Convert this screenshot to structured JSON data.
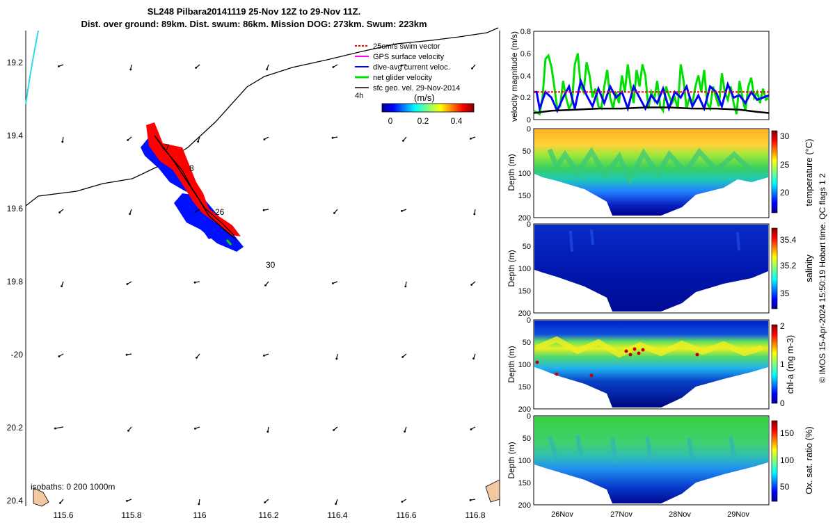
{
  "title": {
    "line1": "SL248 Pilbara20141119 25-Nov 12Z to 29-Nov 11Z.",
    "line2": "Dist. over ground: 89km. Dist. swum: 86km. Mission DOG: 273km. Swum: 223km"
  },
  "map": {
    "lon_ticks": [
      "115.6",
      "115.8",
      "116",
      "116.2",
      "116.4",
      "116.6",
      "116.8"
    ],
    "lat_ticks": [
      "19.2",
      "19.4",
      "19.6",
      "19.8",
      "-20",
      "20.2",
      "20.4"
    ],
    "legend": [
      {
        "label": "25cm/s swim vector",
        "color": "#ff0000"
      },
      {
        "label": "GPS surface velocity",
        "color": "#ff00ff"
      },
      {
        "label": "dive-avg current veloc.",
        "color": "#0000ff"
      },
      {
        "label": "net glider velocity",
        "color": "#00e000"
      },
      {
        "label": "sfc geo. vel. 29-Nov-2014",
        "color": "#000000"
      }
    ],
    "legend_extra": "4h",
    "speed_colorbar": {
      "label": "(m/s)",
      "ticks": [
        "0",
        "0.2",
        "0.4"
      ]
    },
    "day_labels": [
      "7",
      "8",
      "26",
      "30"
    ],
    "isobaths_text": "isobaths: 0   200  1000m"
  },
  "chart_data": [
    {
      "type": "line",
      "ylabel": "velocity magnitude (m/s)",
      "ylim": [
        0,
        0.8
      ],
      "yticks": [
        "0",
        "0.2",
        "0.4",
        "0.6",
        "0.8"
      ],
      "x_days": [
        25.5,
        29.5
      ],
      "series": [
        {
          "name": "net glider velocity",
          "color": "#00e000",
          "x": [
            25.5,
            25.6,
            25.65,
            25.7,
            25.75,
            25.8,
            25.85,
            25.9,
            25.95,
            26.0,
            26.05,
            26.1,
            26.15,
            26.2,
            26.25,
            26.3,
            26.35,
            26.4,
            26.45,
            26.5,
            26.55,
            26.6,
            26.65,
            26.7,
            26.75,
            26.8,
            26.85,
            26.9,
            26.95,
            27.0,
            27.05,
            27.1,
            27.15,
            27.2,
            27.25,
            27.3,
            27.35,
            27.4,
            27.45,
            27.5,
            27.55,
            27.6,
            27.65,
            27.7,
            27.75,
            27.8,
            27.85,
            27.9,
            27.95,
            28.0,
            28.05,
            28.1,
            28.15,
            28.2,
            28.25,
            28.3,
            28.35,
            28.4,
            28.45,
            28.5,
            28.55,
            28.6,
            28.65,
            28.7,
            28.75,
            28.8,
            28.85,
            28.9,
            28.95,
            29.0,
            29.05,
            29.1,
            29.15,
            29.2,
            29.25,
            29.3,
            29.35,
            29.4,
            29.45,
            29.5
          ],
          "y": [
            0.08,
            0.05,
            0.2,
            0.55,
            0.58,
            0.48,
            0.3,
            0.1,
            0.12,
            0.35,
            0.2,
            0.1,
            0.15,
            0.5,
            0.6,
            0.3,
            0.25,
            0.52,
            0.4,
            0.2,
            0.28,
            0.12,
            0.1,
            0.3,
            0.45,
            0.2,
            0.1,
            0.25,
            0.15,
            0.4,
            0.25,
            0.5,
            0.3,
            0.15,
            0.45,
            0.3,
            0.5,
            0.4,
            0.1,
            0.25,
            0.18,
            0.35,
            0.12,
            0.08,
            0.3,
            0.22,
            0.15,
            0.2,
            0.1,
            0.5,
            0.35,
            0.1,
            0.2,
            0.15,
            0.3,
            0.4,
            0.25,
            0.45,
            0.15,
            0.1,
            0.3,
            0.2,
            0.12,
            0.42,
            0.25,
            0.18,
            0.3,
            0.15,
            0.05,
            0.35,
            0.2,
            0.08,
            0.3,
            0.38,
            0.2,
            0.25,
            0.15,
            0.28,
            0.18,
            0.2
          ]
        },
        {
          "name": "dive-avg current veloc.",
          "color": "#0000ff",
          "x": [
            25.5,
            25.55,
            25.6,
            25.7,
            25.8,
            25.9,
            26.0,
            26.1,
            26.2,
            26.3,
            26.4,
            26.5,
            26.6,
            26.7,
            26.8,
            26.9,
            27.0,
            27.1,
            27.2,
            27.3,
            27.4,
            27.5,
            27.6,
            27.7,
            27.8,
            27.9,
            28.0,
            28.1,
            28.2,
            28.3,
            28.4,
            28.5,
            28.6,
            28.7,
            28.8,
            28.9,
            29.0,
            29.1,
            29.2,
            29.3,
            29.4,
            29.5
          ],
          "y": [
            0.25,
            0.25,
            0.1,
            0.25,
            0.2,
            0.08,
            0.2,
            0.3,
            0.1,
            0.35,
            0.22,
            0.12,
            0.28,
            0.15,
            0.3,
            0.2,
            0.25,
            0.1,
            0.3,
            0.2,
            0.1,
            0.22,
            0.15,
            0.28,
            0.1,
            0.25,
            0.2,
            0.3,
            0.12,
            0.22,
            0.1,
            0.3,
            0.25,
            0.12,
            0.32,
            0.2,
            0.22,
            0.15,
            0.25,
            0.18,
            0.2,
            0.22
          ]
        },
        {
          "name": "25cm/s swim vector",
          "color": "#ff0000",
          "x": [
            25.5,
            29.5
          ],
          "y": [
            0.25,
            0.25
          ]
        },
        {
          "name": "sfc geo. vel. 29-Nov-2014",
          "color": "#000000",
          "x": [
            25.5,
            25.8,
            26.2,
            26.6,
            27.0,
            27.4,
            27.8,
            28.2,
            28.6,
            29.0,
            29.3,
            29.5
          ],
          "y": [
            0.06,
            0.08,
            0.09,
            0.1,
            0.1,
            0.11,
            0.11,
            0.1,
            0.1,
            0.09,
            0.07,
            0.06
          ]
        }
      ]
    },
    {
      "type": "heatmap",
      "ylabel": "Depth (m)",
      "ylim": [
        0,
        200
      ],
      "yticks": [
        "0",
        "50",
        "100",
        "150",
        "200"
      ],
      "colorbar": {
        "label": "temperature (°C)",
        "ticks": [
          "20",
          "25",
          "30"
        ]
      }
    },
    {
      "type": "heatmap",
      "ylabel": "Depth (m)",
      "ylim": [
        0,
        200
      ],
      "yticks": [
        "0",
        "50",
        "100",
        "150",
        "200"
      ],
      "colorbar": {
        "label": "salinity",
        "ticks": [
          "35",
          "35.2",
          "35.4"
        ]
      }
    },
    {
      "type": "heatmap",
      "ylabel": "Depth (m)",
      "ylim": [
        0,
        200
      ],
      "yticks": [
        "0",
        "50",
        "100",
        "150",
        "200"
      ],
      "colorbar": {
        "label": "chl-a (mg m-3)",
        "ticks": [
          "0",
          "1",
          "2"
        ]
      }
    },
    {
      "type": "heatmap",
      "ylabel": "Depth (m)",
      "ylim": [
        0,
        200
      ],
      "yticks": [
        "0",
        "50",
        "100",
        "150",
        "200"
      ],
      "colorbar": {
        "label": "Ox. sat. ratio (%)",
        "ticks": [
          "50",
          "100",
          "150"
        ]
      },
      "x_ticks": [
        "26Nov",
        "27Nov",
        "28Nov",
        "29Nov"
      ]
    }
  ],
  "side_note": "© IMOS 15-Apr-2024 15:50:19 Hobart time. QC flags 1  2"
}
